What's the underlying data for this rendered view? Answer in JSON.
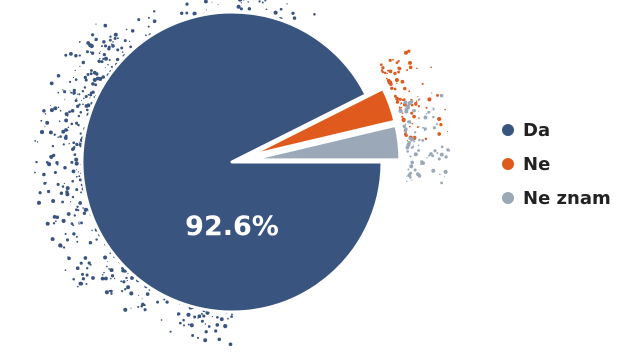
{
  "chart_data": {
    "type": "pie",
    "slices": [
      {
        "label": "Da",
        "value": 92.6,
        "color": "#3a5480"
      },
      {
        "label": "Ne",
        "value": 3.7,
        "color": "#e05a1e"
      },
      {
        "label": "Ne znam",
        "value": 3.7,
        "color": "#9aa8b8"
      }
    ],
    "data_labels": [
      "92.6%"
    ],
    "legend_position": "right",
    "exploded_slices": [
      "Ne",
      "Ne znam"
    ],
    "style": "splatter edges"
  }
}
